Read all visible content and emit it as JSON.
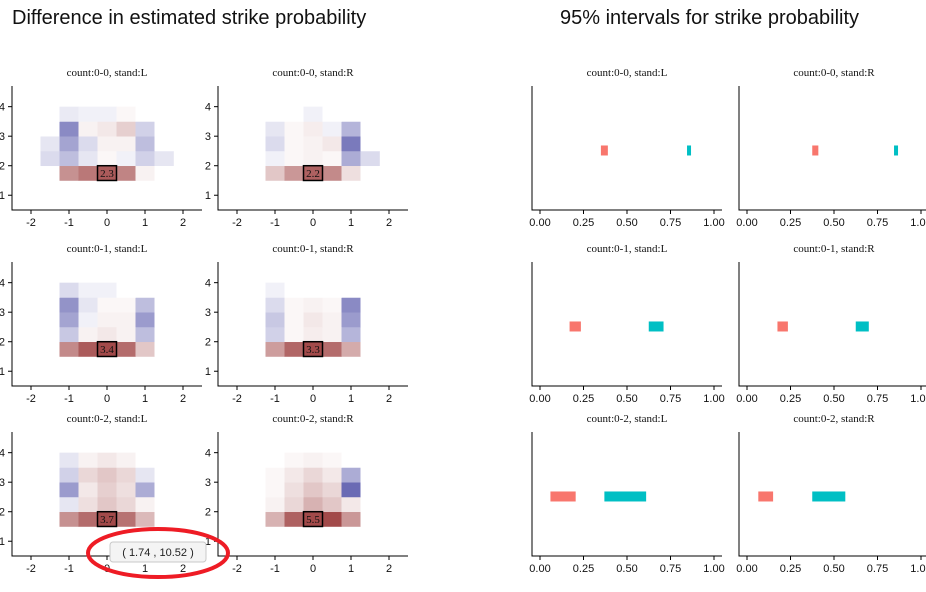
{
  "titles": {
    "left": "Difference in estimated strike probability",
    "right": "95% intervals for strike probability"
  },
  "colors": {
    "red_scale": "#a24a4a",
    "blue_scale": "#6a6ab4",
    "interval_a": "#f8766d",
    "interval_b": "#00bfc4",
    "annotation": "#ee1c25"
  },
  "tooltip": {
    "text": "( 1.74 ,  10.52 )"
  },
  "chart_data": [
    {
      "type": "heatmap",
      "title": "count:0-0, stand:L",
      "xlim": [
        -2.5,
        2.5
      ],
      "ylim": [
        0.5,
        4.7
      ],
      "xticks": [
        -2,
        -1,
        0,
        1,
        2
      ],
      "yticks": [
        1,
        2,
        3,
        4
      ],
      "x": [
        -1.5,
        -1.0,
        -0.5,
        0.0,
        0.5,
        1.0,
        1.5
      ],
      "y": [
        1.75,
        2.25,
        2.75,
        3.25,
        3.75
      ],
      "z": [
        [
          0.0,
          1.4,
          1.8,
          2.3,
          1.6,
          0.1,
          0.0
        ],
        [
          -0.15,
          -0.3,
          -0.1,
          0.05,
          -0.05,
          -0.2,
          -0.1
        ],
        [
          -0.1,
          -0.45,
          -0.15,
          0.1,
          0.1,
          -0.3,
          0.0
        ],
        [
          0.0,
          -0.6,
          0.1,
          0.2,
          0.5,
          -0.2,
          0.0
        ],
        [
          0.0,
          -0.08,
          -0.05,
          -0.05,
          0.05,
          0.0,
          0.0
        ]
      ],
      "highlight": {
        "x": 0.0,
        "y": 1.75,
        "label": "2.3"
      }
    },
    {
      "type": "heatmap",
      "title": "count:0-0, stand:R",
      "xlim": [
        -2.5,
        2.5
      ],
      "ylim": [
        0.5,
        4.7
      ],
      "xticks": [
        -2,
        -1,
        0,
        1,
        2
      ],
      "yticks": [
        1,
        2,
        3,
        4
      ],
      "x": [
        -1.5,
        -1.0,
        -0.5,
        0.0,
        0.5,
        1.0,
        1.5
      ],
      "y": [
        1.75,
        2.25,
        2.75,
        3.25,
        3.75
      ],
      "z": [
        [
          0.0,
          0.6,
          1.3,
          2.2,
          1.5,
          0.3,
          0.0
        ],
        [
          0.0,
          -0.05,
          0.05,
          0.1,
          0.05,
          -0.4,
          -0.15
        ],
        [
          0.0,
          -0.15,
          0.05,
          0.1,
          0.2,
          -0.7,
          0.0
        ],
        [
          0.0,
          -0.1,
          0.05,
          0.15,
          -0.05,
          -0.35,
          0.0
        ],
        [
          0.0,
          0.0,
          0.0,
          -0.05,
          0.0,
          0.0,
          0.0
        ]
      ],
      "highlight": {
        "x": 0.0,
        "y": 1.75,
        "label": "2.2"
      }
    },
    {
      "type": "heatmap",
      "title": "count:0-1, stand:L",
      "xlim": [
        -2.5,
        2.5
      ],
      "ylim": [
        0.5,
        4.7
      ],
      "xticks": [
        -2,
        -1,
        0,
        1,
        2
      ],
      "yticks": [
        1,
        2,
        3,
        4
      ],
      "x": [
        -1.5,
        -1.0,
        -0.5,
        0.0,
        0.5,
        1.0,
        1.5
      ],
      "y": [
        1.75,
        2.25,
        2.75,
        3.25,
        3.75
      ],
      "z": [
        [
          0.0,
          1.5,
          2.3,
          3.4,
          2.0,
          0.6,
          0.0
        ],
        [
          0.0,
          -0.25,
          0.1,
          0.2,
          0.1,
          -0.3,
          0.0
        ],
        [
          0.0,
          -0.45,
          -0.05,
          0.1,
          0.1,
          -0.5,
          0.0
        ],
        [
          0.0,
          -0.55,
          -0.1,
          0.05,
          0.05,
          -0.3,
          0.0
        ],
        [
          0.0,
          -0.15,
          -0.05,
          -0.05,
          0.0,
          0.0,
          0.0
        ]
      ],
      "highlight": {
        "x": 0.0,
        "y": 1.75,
        "label": "3.4"
      }
    },
    {
      "type": "heatmap",
      "title": "count:0-1, stand:R",
      "xlim": [
        -2.5,
        2.5
      ],
      "ylim": [
        0.5,
        4.7
      ],
      "xticks": [
        -2,
        -1,
        0,
        1,
        2
      ],
      "yticks": [
        1,
        2,
        3,
        4
      ],
      "x": [
        -1.5,
        -1.0,
        -0.5,
        0.0,
        0.5,
        1.0,
        1.5
      ],
      "y": [
        1.75,
        2.25,
        2.75,
        3.25,
        3.75
      ],
      "z": [
        [
          0.0,
          1.2,
          2.1,
          3.3,
          2.0,
          1.0,
          0.0
        ],
        [
          0.0,
          -0.2,
          0.05,
          0.15,
          0.1,
          -0.35,
          0.0
        ],
        [
          0.0,
          -0.25,
          0.05,
          0.2,
          0.1,
          -0.5,
          0.0
        ],
        [
          0.0,
          -0.15,
          0.05,
          0.1,
          0.05,
          -0.6,
          0.0
        ],
        [
          0.0,
          -0.05,
          0.0,
          0.0,
          0.0,
          0.0,
          0.0
        ]
      ],
      "highlight": {
        "x": 0.0,
        "y": 1.75,
        "label": "3.3"
      }
    },
    {
      "type": "heatmap",
      "title": "count:0-2, stand:L",
      "xlim": [
        -2.5,
        2.5
      ],
      "ylim": [
        0.5,
        4.7
      ],
      "xticks": [
        -2,
        -1,
        0,
        1,
        2
      ],
      "yticks": [
        1,
        2,
        3,
        4
      ],
      "x": [
        -1.5,
        -1.0,
        -0.5,
        0.0,
        0.5,
        1.0,
        1.5
      ],
      "y": [
        1.75,
        2.25,
        2.75,
        3.25,
        3.75
      ],
      "z": [
        [
          0.0,
          1.4,
          2.0,
          3.7,
          1.9,
          0.8,
          0.0
        ],
        [
          0.0,
          -0.1,
          0.3,
          0.6,
          0.4,
          0.1,
          0.0
        ],
        [
          0.0,
          -0.5,
          0.2,
          0.5,
          0.3,
          -0.4,
          0.0
        ],
        [
          0.0,
          -0.2,
          0.4,
          0.6,
          0.4,
          -0.1,
          0.0
        ],
        [
          0.0,
          -0.1,
          0.1,
          0.2,
          0.1,
          0.0,
          0.0
        ]
      ],
      "highlight": {
        "x": 0.0,
        "y": 1.75,
        "label": "3.7"
      }
    },
    {
      "type": "heatmap",
      "title": "count:0-2, stand:R",
      "xlim": [
        -2.5,
        2.5
      ],
      "ylim": [
        0.5,
        4.7
      ],
      "xticks": [
        -2,
        -1,
        0,
        1,
        2
      ],
      "yticks": [
        1,
        2,
        3,
        4
      ],
      "x": [
        -1.5,
        -1.0,
        -0.5,
        0.0,
        0.5,
        1.0,
        1.5
      ],
      "y": [
        1.75,
        2.25,
        2.75,
        3.25,
        3.75
      ],
      "z": [
        [
          0.0,
          0.9,
          2.2,
          5.5,
          2.8,
          1.3,
          0.0
        ],
        [
          0.0,
          0.1,
          0.4,
          0.9,
          0.6,
          0.2,
          0.0
        ],
        [
          0.0,
          0.05,
          0.3,
          0.6,
          0.4,
          -0.8,
          0.0
        ],
        [
          0.0,
          0.05,
          0.2,
          0.4,
          0.2,
          -0.4,
          0.0
        ],
        [
          0.0,
          0.0,
          0.05,
          0.1,
          0.05,
          0.0,
          0.0
        ]
      ],
      "highlight": {
        "x": 0.0,
        "y": 1.75,
        "label": "5.5"
      }
    },
    {
      "type": "bar",
      "title": "count:0-0, stand:L",
      "xlim": [
        0,
        1
      ],
      "xticks": [
        "0.00",
        "0.25",
        "0.50",
        "0.75",
        "1.00"
      ],
      "intervals": [
        {
          "lo": 0.35,
          "hi": 0.39,
          "color": "#f8766d"
        },
        {
          "lo": 0.845,
          "hi": 0.865,
          "color": "#00bfc4"
        }
      ]
    },
    {
      "type": "bar",
      "title": "count:0-0, stand:R",
      "xlim": [
        0,
        1
      ],
      "xticks": [
        "0.00",
        "0.25",
        "0.50",
        "0.75",
        "1.00"
      ],
      "intervals": [
        {
          "lo": 0.375,
          "hi": 0.41,
          "color": "#f8766d"
        },
        {
          "lo": 0.845,
          "hi": 0.865,
          "color": "#00bfc4"
        }
      ]
    },
    {
      "type": "bar",
      "title": "count:0-1, stand:L",
      "xlim": [
        0,
        1
      ],
      "xticks": [
        "0.00",
        "0.25",
        "0.50",
        "0.75",
        "1.00"
      ],
      "intervals": [
        {
          "lo": 0.17,
          "hi": 0.235,
          "color": "#f8766d"
        },
        {
          "lo": 0.625,
          "hi": 0.71,
          "color": "#00bfc4"
        }
      ]
    },
    {
      "type": "bar",
      "title": "count:0-1, stand:R",
      "xlim": [
        0,
        1
      ],
      "xticks": [
        "0.00",
        "0.25",
        "0.50",
        "0.75",
        "1.00"
      ],
      "intervals": [
        {
          "lo": 0.175,
          "hi": 0.235,
          "color": "#f8766d"
        },
        {
          "lo": 0.625,
          "hi": 0.7,
          "color": "#00bfc4"
        }
      ]
    },
    {
      "type": "bar",
      "title": "count:0-2, stand:L",
      "xlim": [
        0,
        1
      ],
      "xticks": [
        "0.00",
        "0.25",
        "0.50",
        "0.75",
        "1.00"
      ],
      "intervals": [
        {
          "lo": 0.06,
          "hi": 0.205,
          "color": "#f8766d"
        },
        {
          "lo": 0.37,
          "hi": 0.61,
          "color": "#00bfc4"
        }
      ]
    },
    {
      "type": "bar",
      "title": "count:0-2, stand:R",
      "xlim": [
        0,
        1
      ],
      "xticks": [
        "0.00",
        "0.25",
        "0.50",
        "0.75",
        "1.00"
      ],
      "intervals": [
        {
          "lo": 0.065,
          "hi": 0.15,
          "color": "#f8766d"
        },
        {
          "lo": 0.375,
          "hi": 0.565,
          "color": "#00bfc4"
        }
      ]
    }
  ]
}
